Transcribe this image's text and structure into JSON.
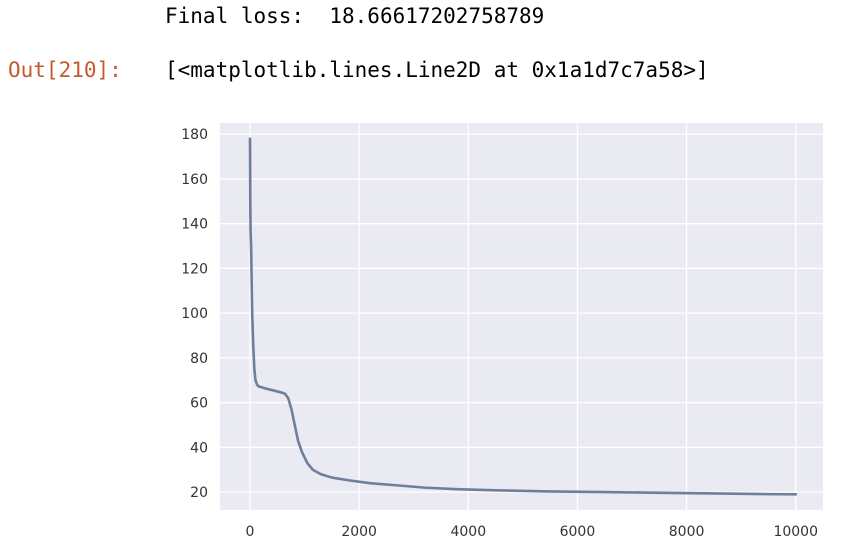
{
  "output": {
    "stdout_label": "Final loss:",
    "stdout_value": "18.66617202758789",
    "prompt": "Out[210]:",
    "repr": "[<matplotlib.lines.Line2D at 0x1a1d7c7a58>]"
  },
  "colors": {
    "prompt": "#c45a2c",
    "axes_background": "#eaeaf2",
    "grid": "#ffffff",
    "line": "#6e7f99"
  },
  "chart_data": {
    "type": "line",
    "title": "",
    "xlabel": "",
    "ylabel": "",
    "xlim": [
      -550,
      10500
    ],
    "ylim": [
      12,
      185
    ],
    "xticks": [
      0,
      2000,
      4000,
      6000,
      8000,
      10000
    ],
    "yticks": [
      20,
      40,
      60,
      80,
      100,
      120,
      140,
      160,
      180
    ],
    "grid": true,
    "legend": "none",
    "series": [
      {
        "x": [
          0,
          5,
          10,
          20,
          30,
          40,
          60,
          80,
          100,
          130,
          160,
          200,
          260,
          340,
          420,
          500,
          580,
          640,
          700,
          760,
          820,
          880,
          950,
          1050,
          1150,
          1300,
          1500,
          1800,
          2200,
          2700,
          3200,
          3800,
          4500,
          5500,
          6500,
          7500,
          8500,
          9500,
          10000
        ],
        "y": [
          178,
          150,
          137,
          130,
          115,
          100,
          85,
          75,
          70,
          68,
          67.2,
          67,
          66.5,
          66,
          65.5,
          65,
          64.5,
          64,
          62,
          57,
          50,
          43,
          38,
          33,
          30,
          28,
          26.5,
          25.3,
          24,
          23,
          22,
          21.3,
          20.8,
          20.3,
          20,
          19.7,
          19.4,
          19.1,
          19
        ]
      }
    ]
  }
}
